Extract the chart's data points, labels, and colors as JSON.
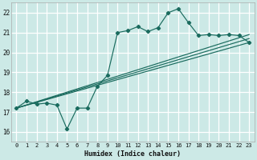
{
  "xlabel": "Humidex (Indice chaleur)",
  "xlim": [
    -0.5,
    23.5
  ],
  "ylim": [
    15.5,
    22.5
  ],
  "xticks": [
    0,
    1,
    2,
    3,
    4,
    5,
    6,
    7,
    8,
    9,
    10,
    11,
    12,
    13,
    14,
    15,
    16,
    17,
    18,
    19,
    20,
    21,
    22,
    23
  ],
  "yticks": [
    16,
    17,
    18,
    19,
    20,
    21,
    22
  ],
  "bg_color": "#cce9e6",
  "line_color": "#1a6b5e",
  "grid_color": "#ffffff",
  "lines": [
    {
      "x": [
        0,
        1,
        2,
        3,
        4,
        5,
        6,
        7,
        8,
        9,
        10,
        11,
        12,
        13,
        14,
        15,
        16,
        17,
        18,
        19,
        20,
        21,
        22,
        23
      ],
      "y": [
        17.2,
        17.55,
        17.4,
        17.45,
        17.35,
        16.15,
        17.2,
        17.2,
        18.3,
        18.85,
        21.0,
        21.1,
        21.3,
        21.05,
        21.25,
        22.0,
        22.2,
        21.5,
        20.85,
        20.9,
        20.85,
        20.9,
        20.85,
        20.5
      ],
      "marker": "D",
      "markersize": 2.2
    },
    {
      "x": [
        0,
        23
      ],
      "y": [
        17.2,
        20.5
      ],
      "marker": null,
      "markersize": 0
    },
    {
      "x": [
        0,
        23
      ],
      "y": [
        17.2,
        20.7
      ],
      "marker": null,
      "markersize": 0
    },
    {
      "x": [
        0,
        23
      ],
      "y": [
        17.2,
        20.9
      ],
      "marker": null,
      "markersize": 0
    }
  ]
}
